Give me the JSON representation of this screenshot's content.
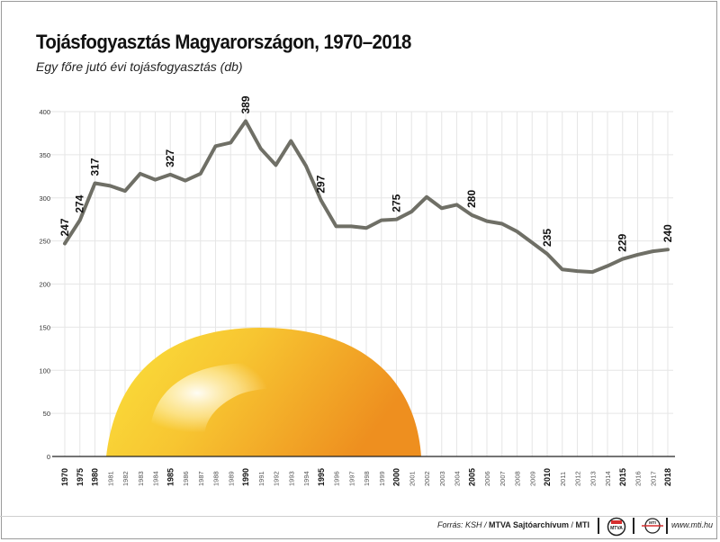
{
  "title": "Tojásfogyasztás Magyarországon, 1970–2018",
  "subtitle": "Egy főre jutó évi tojásfogyasztás (db)",
  "footer": {
    "source_prefix": "Forrás: KSH / ",
    "source_org": "MTVA Sajtóarchívum",
    "source_sep": " / ",
    "source_mti": "MTI",
    "url": "www.mti.hu",
    "logo1_text": "MTVA",
    "logo2_text": "MTI"
  },
  "colors": {
    "line": "#6f6f66",
    "grid": "#e6e6e6",
    "egg_light": "#fff4b0",
    "egg_mid": "#f7c531",
    "egg_dark": "#ef961f"
  },
  "chart_data": {
    "type": "line",
    "title": "Tojásfogyasztás Magyarországon, 1970–2018",
    "ylabel": "Egy főre jutó évi tojásfogyasztás (db)",
    "ylim": [
      0,
      400
    ],
    "yticks": [
      0,
      50,
      100,
      150,
      200,
      250,
      300,
      350,
      400
    ],
    "grid": true,
    "x": [
      1970,
      1975,
      1980,
      1981,
      1982,
      1983,
      1984,
      1985,
      1986,
      1987,
      1988,
      1989,
      1990,
      1991,
      1992,
      1993,
      1994,
      1995,
      1996,
      1997,
      1998,
      1999,
      2000,
      2001,
      2002,
      2003,
      2004,
      2005,
      2006,
      2007,
      2008,
      2009,
      2010,
      2011,
      2012,
      2013,
      2014,
      2015,
      2016,
      2017,
      2018
    ],
    "bold_years": [
      1970,
      1975,
      1980,
      1985,
      1990,
      1995,
      2000,
      2005,
      2010,
      2015,
      2018
    ],
    "series": [
      {
        "values": [
          247,
          274,
          317,
          314,
          308,
          328,
          321,
          327,
          320,
          328,
          360,
          364,
          389,
          357,
          338,
          366,
          337,
          297,
          267,
          267,
          265,
          274,
          275,
          284,
          301,
          288,
          292,
          280,
          273,
          270,
          261,
          248,
          235,
          217,
          215,
          214,
          221,
          229,
          234,
          238,
          240
        ]
      }
    ],
    "data_labels": [
      {
        "x": 1970,
        "y": 247,
        "text": "247"
      },
      {
        "x": 1975,
        "y": 274,
        "text": "274"
      },
      {
        "x": 1980,
        "y": 317,
        "text": "317"
      },
      {
        "x": 1985,
        "y": 327,
        "text": "327"
      },
      {
        "x": 1990,
        "y": 389,
        "text": "389"
      },
      {
        "x": 1995,
        "y": 297,
        "text": "297"
      },
      {
        "x": 2000,
        "y": 275,
        "text": "275"
      },
      {
        "x": 2005,
        "y": 280,
        "text": "280"
      },
      {
        "x": 2010,
        "y": 235,
        "text": "235"
      },
      {
        "x": 2015,
        "y": 229,
        "text": "229"
      },
      {
        "x": 2018,
        "y": 240,
        "text": "240"
      }
    ]
  }
}
